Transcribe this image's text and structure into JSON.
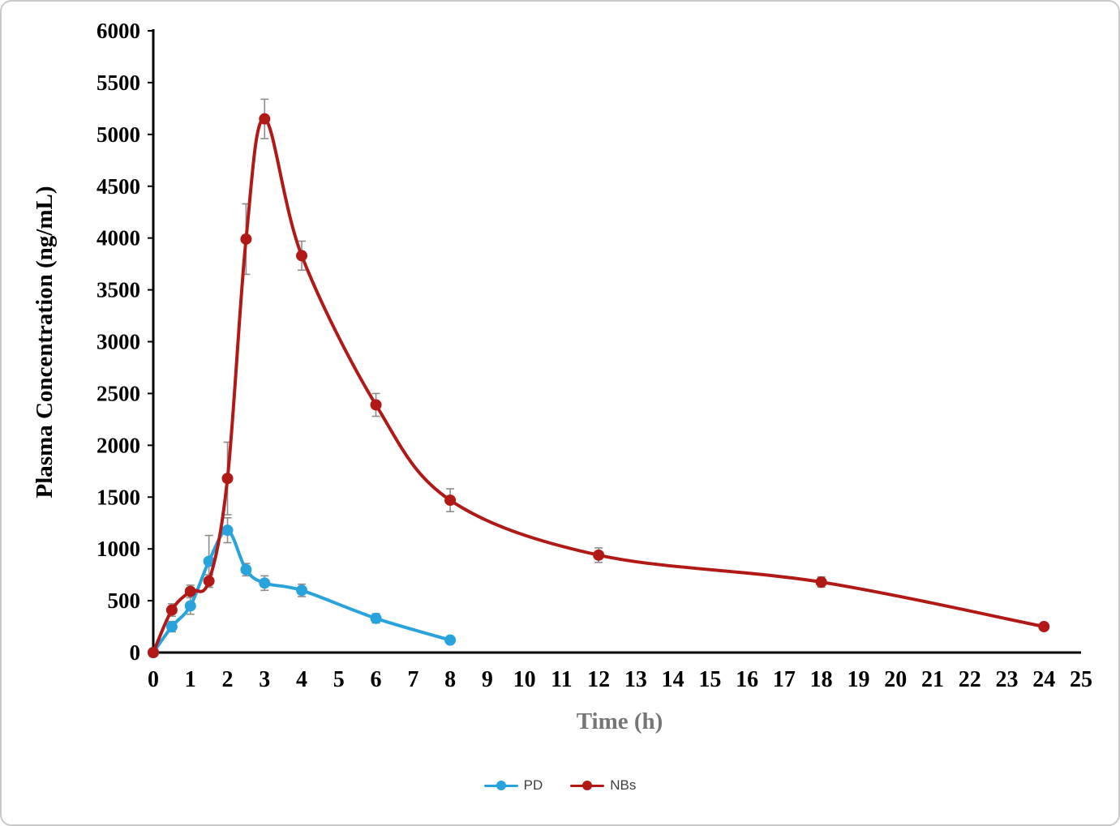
{
  "chart_data": {
    "type": "line",
    "title": "",
    "xlabel": "Time (h)",
    "ylabel": "Plasma Concentration (ng/mL)",
    "xlim": [
      0,
      25
    ],
    "ylim": [
      0,
      6000
    ],
    "x_ticks": [
      0,
      1,
      2,
      3,
      4,
      5,
      6,
      7,
      8,
      9,
      10,
      11,
      12,
      13,
      14,
      15,
      16,
      17,
      18,
      19,
      20,
      21,
      22,
      23,
      24,
      25
    ],
    "y_ticks": [
      0,
      500,
      1000,
      1500,
      2000,
      2500,
      3000,
      3500,
      4000,
      4500,
      5000,
      5500,
      6000
    ],
    "grid": false,
    "legend_position": "bottom",
    "error_bar_color": "#8c8c8c",
    "series": [
      {
        "name": "PD",
        "color": "#29a3dc",
        "x": [
          0,
          0.5,
          1,
          1.5,
          2,
          2.5,
          3,
          4,
          6,
          8
        ],
        "y": [
          0,
          250,
          450,
          880,
          1180,
          800,
          670,
          600,
          330,
          120
        ],
        "yerr": [
          0,
          50,
          80,
          250,
          120,
          60,
          70,
          60,
          45,
          25
        ]
      },
      {
        "name": "NBs",
        "color": "#b11917",
        "x": [
          0,
          0.5,
          1,
          1.5,
          2,
          2.5,
          3,
          4,
          6,
          8,
          12,
          18,
          24
        ],
        "y": [
          0,
          410,
          590,
          690,
          1680,
          3990,
          5150,
          3830,
          2390,
          1470,
          940,
          680,
          250
        ],
        "yerr": [
          0,
          60,
          60,
          60,
          350,
          340,
          190,
          140,
          110,
          110,
          70,
          50,
          20
        ]
      }
    ]
  }
}
